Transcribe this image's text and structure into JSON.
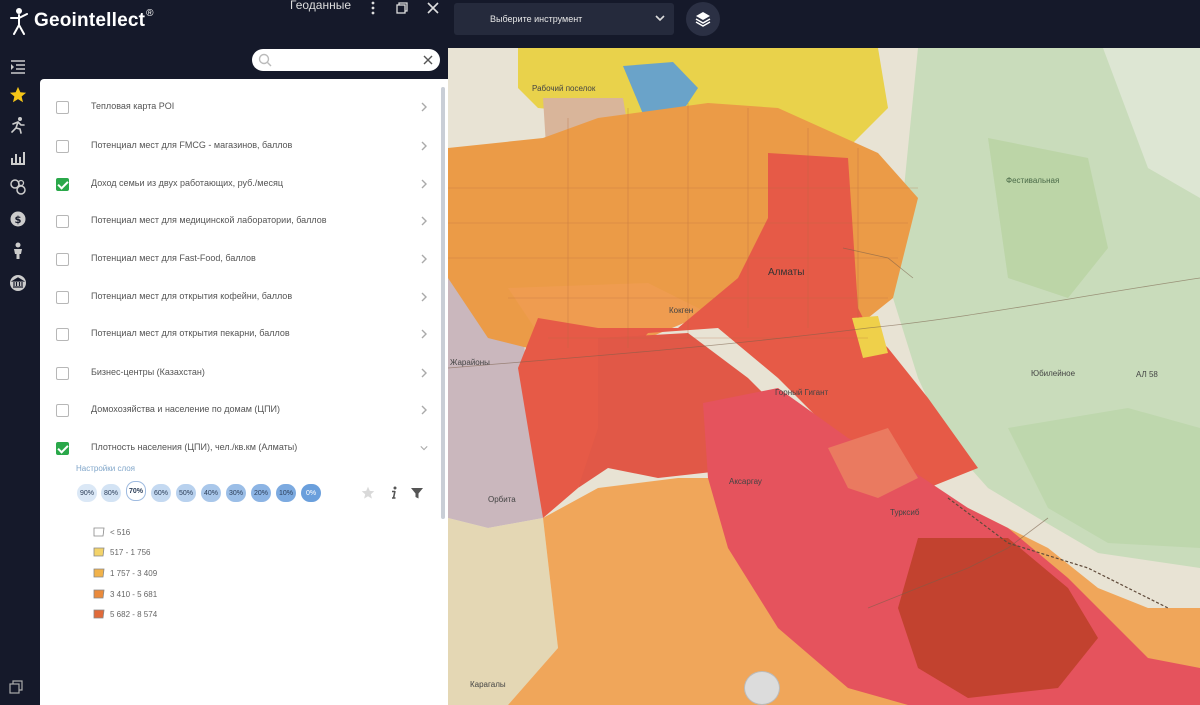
{
  "app": {
    "logo_text": "Geointellect",
    "logo_reg": "®",
    "panel_title": "Геоданные"
  },
  "toolbar": {
    "tool_select_value": "Выберите инструмент"
  },
  "search": {
    "value": ""
  },
  "layers": [
    {
      "label": "Тепловая карта POI",
      "checked": false
    },
    {
      "label": "Потенциал мест для FMCG - магазинов, баллов",
      "checked": false
    },
    {
      "label": "Доход семьи из двух работающих, руб./месяц",
      "checked": true
    },
    {
      "label": "Потенциал мест для медицинской лаборатории, баллов",
      "checked": false
    },
    {
      "label": "Потенциал мест для Fast-Food, баллов",
      "checked": false
    },
    {
      "label": "Потенциал мест для открытия кофейни, баллов",
      "checked": false
    },
    {
      "label": "Потенциал мест для открытия пекарни, баллов",
      "checked": false
    },
    {
      "label": "Бизнес-центры (Казахстан)",
      "checked": false
    },
    {
      "label": "Домохозяйства и население по домам (ЦПИ)",
      "checked": false
    },
    {
      "label": "Плотность населения (ЦПИ), чел./кв.км (Алматы)",
      "checked": true
    }
  ],
  "layer_settings": {
    "label": "Настройки слоя",
    "opacity_options": [
      "90%",
      "80%",
      "70%",
      "60%",
      "50%",
      "40%",
      "30%",
      "20%",
      "10%",
      "0%"
    ],
    "selected_opacity": "70%"
  },
  "legend": [
    {
      "label": "< 516",
      "color": "#ffffff"
    },
    {
      "label": "517 - 1 756",
      "color": "#f3d36a"
    },
    {
      "label": "1 757 - 3 409",
      "color": "#f1b24a"
    },
    {
      "label": "3 410 - 5 681",
      "color": "#ea8a3c"
    },
    {
      "label": "5 682 - 8 574",
      "color": "#e06a3a"
    }
  ],
  "map": {
    "places": [
      {
        "label": "Рабочий поселок"
      },
      {
        "label": "Алматы"
      },
      {
        "label": "Кокген"
      },
      {
        "label": "Горный Гигант"
      },
      {
        "label": "Юбилейное"
      },
      {
        "label": "Аксаргау"
      },
      {
        "label": "Орбита"
      },
      {
        "label": "Карагалы"
      },
      {
        "label": "Жарайоны"
      },
      {
        "label": "Фестивальная"
      },
      {
        "label": "Турксиб"
      },
      {
        "label": "АЛ 58"
      }
    ]
  }
}
